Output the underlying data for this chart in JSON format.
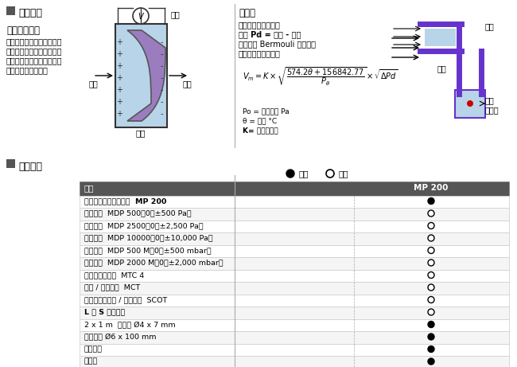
{
  "title_section1": "测量原理",
  "subtitle1": "压阻式传感器",
  "desc1_line1": "压阻式传感器是在硅基底上",
  "desc1_line2": "形成薄膜，施与压力时传感",
  "desc1_line3": "器将弯曲并产生微电压或微",
  "desc1_line4": "电流与压力成正比．",
  "label_pressure": "压力",
  "label_vacuum": "真空",
  "label_voltage": "电压",
  "label_silicon": "硅层",
  "title_pitot": "皮托管",
  "pitot_line1": "动压由皮托管测量：",
  "pitot_line2": "动压 Pd = 全压 - 静压",
  "pitot_line3": "风速则依 Bermouli 公式计算",
  "pitot_line4": "含温度修正的公式：",
  "formula": "V_{m} = K x \\sqrt{\\frac{574.2\\theta + 156842.77}{P_\\theta}} x \\sqrt{\\Delta Pd}",
  "legend_po": "Po = 大气压力 Pa",
  "legend_theta": "θ = 温度 °C",
  "legend_k": "K= 皮托管系数",
  "pitot_label_total": "全压",
  "pitot_label_static": "静压",
  "pitot_label_sensor": "压力\n传感器",
  "title_section2": "随货提供",
  "legend_included": "包含",
  "legend_optional": "选购",
  "col_header1": "说明",
  "col_header2": "MP 200",
  "table_rows": [
    [
      "多功能差压风速测量仪  MP 200",
      "●"
    ],
    [
      "差压模块  MDP 500（0～±500 Pa）",
      "○"
    ],
    [
      "差压模块  MDP 2500（0～±2,500 Pa）",
      "○"
    ],
    [
      "差压模块  MDP 10000（0～±10,000 Pa）",
      "○"
    ],
    [
      "差压模块  MDP 500 M（0～±500 mbar）",
      "○"
    ],
    [
      "差压模块  MDP 2000 M（0～±2,000 mbar）",
      "○"
    ],
    [
      "热电偶温度模块  MTC 4",
      "○"
    ],
    [
      "电流 / 电压模块  MCT",
      "○"
    ],
    [
      "智能型一氧化碳 / 温度探头  SCOT",
      "○"
    ],
    [
      "L 或 S 型皮托管",
      "○"
    ],
    [
      "2 x 1 m  硅软管 Ø4 x 7 mm",
      "●"
    ],
    [
      "不锈钢管 Ø6 x 100 mm",
      "●"
    ],
    [
      "校准证书",
      "●"
    ],
    [
      "便携箱",
      "●"
    ]
  ],
  "header_bg": "#555555",
  "header_fg": "#ffffff",
  "row_bg_light": "#ffffff",
  "row_bg_bold": "#f0f0f0",
  "border_color": "#aaaaaa",
  "section_icon_color": "#555555"
}
